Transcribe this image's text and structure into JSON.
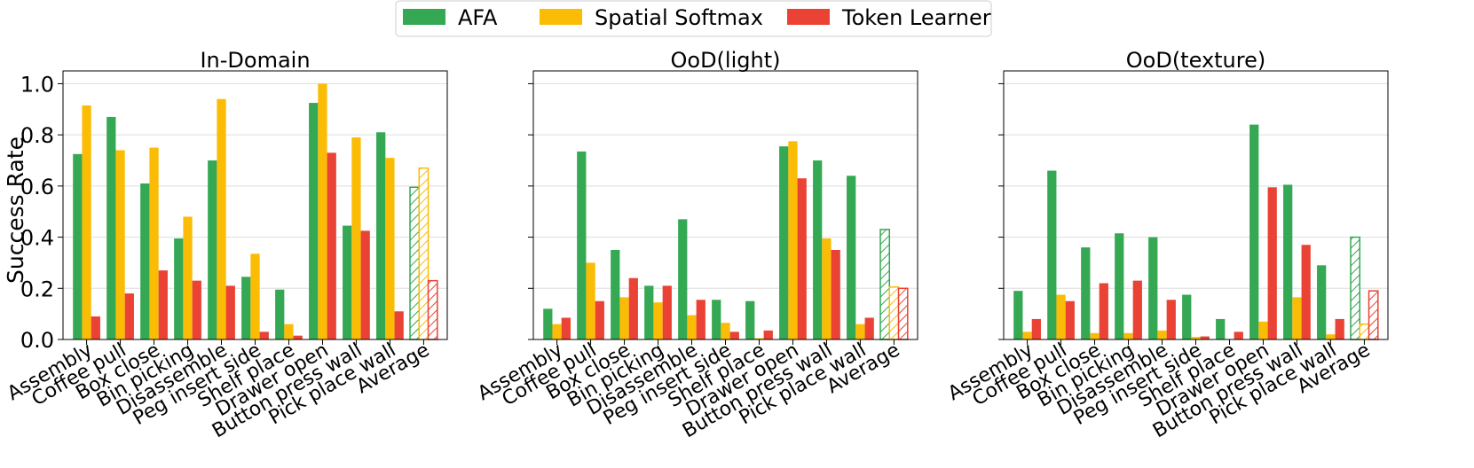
{
  "legend": {
    "placement": "top-center",
    "entries": [
      {
        "label": "AFA",
        "color": "#34a853"
      },
      {
        "label": "Spatial Softmax",
        "color": "#fbbc05"
      },
      {
        "label": "Token Learner",
        "color": "#ea4335"
      }
    ]
  },
  "ylabel": "Success Rate",
  "chart_data": [
    {
      "type": "bar",
      "title": "In-Domain",
      "ylim": [
        0,
        1.05
      ],
      "yticks": [
        "0.0",
        "0.2",
        "0.4",
        "0.6",
        "0.8",
        "1.0"
      ],
      "grid": true,
      "hatched_category": "Average",
      "categories": [
        "Assembly",
        "Coffee pull",
        "Box close",
        "Bin picking",
        "Disassemble",
        "Peg insert side",
        "Shelf place",
        "Drawer open",
        "Button press wall",
        "Pick place wall",
        "Average"
      ],
      "series": [
        {
          "name": "AFA",
          "values": [
            0.725,
            0.87,
            0.61,
            0.395,
            0.7,
            0.245,
            0.195,
            0.925,
            0.445,
            0.81,
            0.595
          ]
        },
        {
          "name": "Spatial Softmax",
          "values": [
            0.915,
            0.74,
            0.75,
            0.48,
            0.94,
            0.335,
            0.06,
            1.0,
            0.79,
            0.71,
            0.67
          ]
        },
        {
          "name": "Token Learner",
          "values": [
            0.09,
            0.18,
            0.27,
            0.23,
            0.21,
            0.03,
            0.015,
            0.73,
            0.425,
            0.11,
            0.23
          ]
        }
      ]
    },
    {
      "type": "bar",
      "title": "OoD(light)",
      "ylim": [
        0,
        1.05
      ],
      "yticks": [],
      "grid": true,
      "hatched_category": "Average",
      "categories": [
        "Assembly",
        "Coffee pull",
        "Box close",
        "Bin picking",
        "Disassemble",
        "Peg insert side",
        "Shelf place",
        "Drawer open",
        "Button press wall",
        "Pick place wall",
        "Average"
      ],
      "series": [
        {
          "name": "AFA",
          "values": [
            0.12,
            0.735,
            0.35,
            0.21,
            0.47,
            0.155,
            0.15,
            0.755,
            0.7,
            0.64,
            0.43
          ]
        },
        {
          "name": "Spatial Softmax",
          "values": [
            0.06,
            0.3,
            0.165,
            0.145,
            0.095,
            0.065,
            0.005,
            0.775,
            0.395,
            0.06,
            0.205
          ]
        },
        {
          "name": "Token Learner",
          "values": [
            0.085,
            0.15,
            0.24,
            0.21,
            0.155,
            0.03,
            0.035,
            0.63,
            0.35,
            0.085,
            0.2
          ]
        }
      ]
    },
    {
      "type": "bar",
      "title": "OoD(texture)",
      "ylim": [
        0,
        1.05
      ],
      "yticks": [],
      "grid": true,
      "hatched_category": "Average",
      "categories": [
        "Assembly",
        "Coffee pull",
        "Box close",
        "Bin picking",
        "Disassemble",
        "Peg insert side",
        "Shelf place",
        "Drawer open",
        "Button press wall",
        "Pick place wall",
        "Average"
      ],
      "series": [
        {
          "name": "AFA",
          "values": [
            0.19,
            0.66,
            0.36,
            0.415,
            0.4,
            0.175,
            0.08,
            0.84,
            0.605,
            0.29,
            0.4
          ]
        },
        {
          "name": "Spatial Softmax",
          "values": [
            0.03,
            0.175,
            0.025,
            0.025,
            0.035,
            0.01,
            0.0,
            0.07,
            0.165,
            0.02,
            0.06
          ]
        },
        {
          "name": "Token Learner",
          "values": [
            0.08,
            0.15,
            0.22,
            0.23,
            0.155,
            0.012,
            0.03,
            0.595,
            0.37,
            0.08,
            0.19
          ]
        }
      ]
    }
  ]
}
